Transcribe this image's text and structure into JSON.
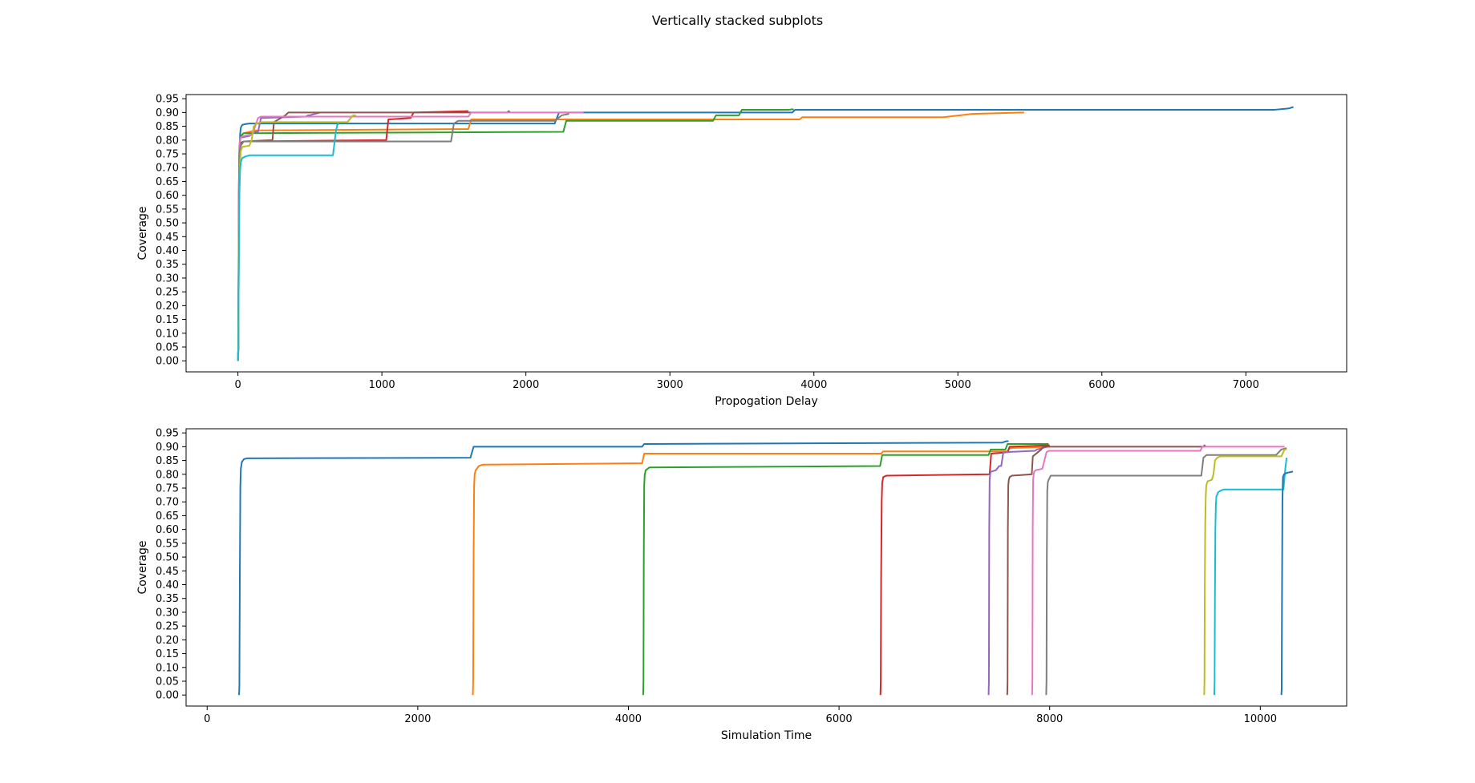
{
  "figure": {
    "title": "Vertically stacked subplots"
  },
  "chart_data": [
    {
      "type": "line",
      "title": "",
      "xlabel": "Propogation Delay",
      "ylabel": "Coverage",
      "xlim": [
        -360,
        7700
      ],
      "ylim": [
        -0.04,
        0.965
      ],
      "xticks": [
        "0",
        "1000",
        "2000",
        "3000",
        "4000",
        "5000",
        "6000",
        "7000"
      ],
      "yticks": [
        "0.00",
        "0.05",
        "0.10",
        "0.15",
        "0.20",
        "0.25",
        "0.30",
        "0.35",
        "0.40",
        "0.45",
        "0.50",
        "0.55",
        "0.60",
        "0.65",
        "0.70",
        "0.75",
        "0.80",
        "0.85",
        "0.90",
        "0.95"
      ],
      "grid": false,
      "series": [
        {
          "color": "#1f77b4",
          "x": [
            0,
            3,
            6,
            10,
            15,
            20,
            30,
            50,
            80,
            2200,
            2230,
            3850,
            3870,
            7200,
            7300,
            7330
          ],
          "y": [
            0,
            0.03,
            0.4,
            0.75,
            0.82,
            0.845,
            0.855,
            0.858,
            0.86,
            0.86,
            0.9,
            0.9,
            0.91,
            0.91,
            0.915,
            0.92
          ]
        },
        {
          "color": "#ff7f0e",
          "x": [
            0,
            3,
            6,
            10,
            15,
            20,
            40,
            80,
            120,
            1600,
            1620,
            3900,
            3920,
            4900,
            5100,
            5460
          ],
          "y": [
            0,
            0.05,
            0.5,
            0.76,
            0.8,
            0.815,
            0.825,
            0.83,
            0.835,
            0.84,
            0.875,
            0.875,
            0.883,
            0.883,
            0.895,
            0.9
          ]
        },
        {
          "color": "#2ca02c",
          "x": [
            0,
            3,
            6,
            10,
            15,
            20,
            40,
            2260,
            2280,
            3300,
            3320,
            3480,
            3500,
            3830,
            3850,
            3860
          ],
          "y": [
            0,
            0.05,
            0.5,
            0.76,
            0.8,
            0.815,
            0.825,
            0.83,
            0.87,
            0.87,
            0.89,
            0.89,
            0.91,
            0.91,
            0.912,
            0.91
          ]
        },
        {
          "color": "#d62728",
          "x": [
            0,
            3,
            6,
            10,
            15,
            20,
            40,
            1030,
            1045,
            1200,
            1220,
            1600
          ],
          "y": [
            0,
            0.05,
            0.45,
            0.7,
            0.77,
            0.79,
            0.795,
            0.8,
            0.875,
            0.88,
            0.9,
            0.905
          ]
        },
        {
          "color": "#9467bd",
          "x": [
            0,
            3,
            6,
            10,
            15,
            20,
            30,
            80,
            120,
            140,
            160,
            470,
            490,
            500,
            570
          ],
          "y": [
            0,
            0.05,
            0.6,
            0.78,
            0.8,
            0.81,
            0.81,
            0.815,
            0.83,
            0.83,
            0.88,
            0.885,
            0.89,
            0.89,
            0.9
          ]
        },
        {
          "color": "#8c564b",
          "x": [
            0,
            3,
            6,
            10,
            15,
            20,
            40,
            240,
            250,
            330,
            350,
            500,
            1870,
            1880,
            1890
          ],
          "y": [
            0,
            0.05,
            0.6,
            0.76,
            0.78,
            0.79,
            0.795,
            0.8,
            0.865,
            0.89,
            0.9,
            0.9,
            0.9,
            0.905,
            0.9
          ]
        },
        {
          "color": "#e377c2",
          "x": [
            0,
            3,
            6,
            10,
            15,
            20,
            40,
            100,
            140,
            160,
            1600,
            1620,
            2400
          ],
          "y": [
            0,
            0.05,
            0.6,
            0.78,
            0.8,
            0.81,
            0.815,
            0.82,
            0.88,
            0.885,
            0.885,
            0.9,
            0.9
          ]
        },
        {
          "color": "#7f7f7f",
          "x": [
            0,
            3,
            6,
            10,
            15,
            20,
            40,
            1480,
            1500,
            1530,
            2200,
            2250,
            2300
          ],
          "y": [
            0,
            0.05,
            0.5,
            0.74,
            0.77,
            0.78,
            0.795,
            0.795,
            0.86,
            0.87,
            0.87,
            0.89,
            0.895
          ]
        },
        {
          "color": "#bcbd22",
          "x": [
            0,
            3,
            6,
            10,
            15,
            20,
            30,
            80,
            95,
            110,
            130,
            160,
            760,
            800,
            820
          ],
          "y": [
            0,
            0.05,
            0.4,
            0.62,
            0.72,
            0.76,
            0.775,
            0.78,
            0.8,
            0.85,
            0.86,
            0.865,
            0.865,
            0.89,
            0.89
          ]
        },
        {
          "color": "#17becf",
          "x": [
            0,
            3,
            6,
            10,
            15,
            20,
            30,
            50,
            80,
            660,
            680,
            690,
            700
          ],
          "y": [
            0,
            0.05,
            0.35,
            0.6,
            0.69,
            0.72,
            0.735,
            0.74,
            0.745,
            0.745,
            0.83,
            0.855,
            0.86
          ]
        }
      ]
    },
    {
      "type": "line",
      "title": "",
      "xlabel": "Simulation Time",
      "ylabel": "Coverage",
      "xlim": [
        -200,
        10820
      ],
      "ylim": [
        -0.04,
        0.965
      ],
      "xticks": [
        "0",
        "2000",
        "4000",
        "6000",
        "8000",
        "10000"
      ],
      "yticks": [
        "0.00",
        "0.05",
        "0.10",
        "0.15",
        "0.20",
        "0.25",
        "0.30",
        "0.35",
        "0.40",
        "0.45",
        "0.50",
        "0.55",
        "0.60",
        "0.65",
        "0.70",
        "0.75",
        "0.80",
        "0.85",
        "0.90",
        "0.95"
      ],
      "grid": false,
      "series": [
        {
          "color": "#1f77b4",
          "x": [
            303,
            306,
            310,
            315,
            320,
            330,
            350,
            380,
            2500,
            2530,
            4130,
            4150,
            7550,
            7590,
            7610
          ],
          "y": [
            0,
            0.03,
            0.4,
            0.75,
            0.82,
            0.845,
            0.855,
            0.858,
            0.86,
            0.9,
            0.9,
            0.91,
            0.915,
            0.92,
            0.92
          ]
        },
        {
          "color": "#ff7f0e",
          "x": [
            2523,
            2526,
            2530,
            2535,
            2540,
            2550,
            2580,
            2620,
            4130,
            4150,
            6400,
            6420,
            7600,
            7620,
            8000
          ],
          "y": [
            0,
            0.05,
            0.5,
            0.76,
            0.8,
            0.815,
            0.83,
            0.835,
            0.84,
            0.875,
            0.875,
            0.883,
            0.883,
            0.895,
            0.9
          ]
        },
        {
          "color": "#2ca02c",
          "x": [
            4140,
            4143,
            4146,
            4150,
            4155,
            4165,
            4200,
            6390,
            6410,
            7420,
            7440,
            7580,
            7600,
            7960,
            7990
          ],
          "y": [
            0,
            0.05,
            0.5,
            0.76,
            0.8,
            0.815,
            0.825,
            0.83,
            0.87,
            0.87,
            0.89,
            0.89,
            0.91,
            0.91,
            0.91
          ]
        },
        {
          "color": "#d62728",
          "x": [
            6393,
            6396,
            6400,
            6405,
            6410,
            6420,
            6450,
            7430,
            7445,
            7600,
            7620,
            8000
          ],
          "y": [
            0,
            0.05,
            0.45,
            0.7,
            0.77,
            0.79,
            0.795,
            0.8,
            0.875,
            0.88,
            0.9,
            0.905
          ]
        },
        {
          "color": "#9467bd",
          "x": [
            7420,
            7423,
            7426,
            7430,
            7435,
            7440,
            7450,
            7490,
            7520,
            7540,
            7560,
            7860,
            7880,
            7980
          ],
          "y": [
            0,
            0.05,
            0.6,
            0.78,
            0.8,
            0.81,
            0.81,
            0.815,
            0.83,
            0.83,
            0.88,
            0.885,
            0.89,
            0.9
          ]
        },
        {
          "color": "#8c564b",
          "x": [
            7597,
            7600,
            7603,
            7607,
            7612,
            7620,
            7640,
            7830,
            7840,
            7920,
            7940,
            9460,
            9470,
            9480
          ],
          "y": [
            0,
            0.05,
            0.6,
            0.76,
            0.78,
            0.79,
            0.795,
            0.8,
            0.865,
            0.89,
            0.9,
            0.9,
            0.905,
            0.9
          ]
        },
        {
          "color": "#e377c2",
          "x": [
            7833,
            7836,
            7839,
            7843,
            7848,
            7853,
            7870,
            7930,
            7970,
            7990,
            9430,
            9450,
            10230
          ],
          "y": [
            0,
            0.05,
            0.6,
            0.78,
            0.8,
            0.81,
            0.815,
            0.82,
            0.88,
            0.885,
            0.885,
            0.9,
            0.9
          ]
        },
        {
          "color": "#7f7f7f",
          "x": [
            7967,
            7970,
            7973,
            7977,
            7982,
            7990,
            8010,
            9440,
            9460,
            9490,
            10150,
            10200,
            10250
          ],
          "y": [
            0,
            0.05,
            0.5,
            0.74,
            0.77,
            0.78,
            0.795,
            0.795,
            0.86,
            0.87,
            0.87,
            0.89,
            0.895
          ]
        },
        {
          "color": "#bcbd22",
          "x": [
            9467,
            9470,
            9473,
            9477,
            9482,
            9487,
            9500,
            9540,
            9555,
            9570,
            9590,
            9620,
            10200,
            10230,
            10250
          ],
          "y": [
            0,
            0.05,
            0.4,
            0.62,
            0.72,
            0.76,
            0.775,
            0.78,
            0.8,
            0.85,
            0.86,
            0.865,
            0.865,
            0.89,
            0.89
          ]
        },
        {
          "color": "#17becf",
          "x": [
            9563,
            9566,
            9569,
            9573,
            9578,
            9583,
            9600,
            9620,
            9650,
            10220,
            10240,
            10250
          ],
          "y": [
            0,
            0.05,
            0.35,
            0.6,
            0.69,
            0.72,
            0.735,
            0.74,
            0.745,
            0.745,
            0.83,
            0.86
          ]
        },
        {
          "color": "#1f77b4",
          "x": [
            10200,
            10203,
            10206,
            10210,
            10215,
            10225,
            10250,
            10310
          ],
          "y": [
            0,
            0.02,
            0.35,
            0.7,
            0.79,
            0.8,
            0.805,
            0.81
          ]
        }
      ]
    }
  ]
}
